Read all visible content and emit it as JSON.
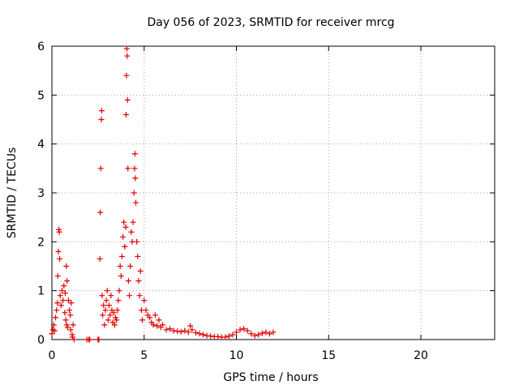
{
  "chart_data": {
    "type": "scatter",
    "title": "Day 056 of 2023, SRMTID for receiver mrcg",
    "xlabel": "GPS time / hours",
    "ylabel": "SRMTID / TECUs",
    "xlim": [
      0,
      24
    ],
    "ylim": [
      0,
      6
    ],
    "xticks": [
      0,
      5,
      10,
      15,
      20
    ],
    "yticks": [
      0,
      1,
      2,
      3,
      4,
      5,
      6
    ],
    "xtick_labels": [
      "0",
      "5",
      "10",
      "15",
      "20"
    ],
    "ytick_labels": [
      "0",
      "1",
      "2",
      "3",
      "4",
      "5",
      "6"
    ],
    "grid": true,
    "marker": "+",
    "series": [
      {
        "name": "SRMTID",
        "color": "#e00000",
        "points": [
          [
            0.0,
            0.12
          ],
          [
            0.05,
            0.2
          ],
          [
            0.1,
            0.3
          ],
          [
            0.15,
            0.18
          ],
          [
            0.2,
            0.45
          ],
          [
            0.25,
            0.6
          ],
          [
            0.3,
            0.75
          ],
          [
            0.32,
            1.3
          ],
          [
            0.35,
            1.8
          ],
          [
            0.38,
            2.25
          ],
          [
            0.4,
            2.2
          ],
          [
            0.42,
            1.65
          ],
          [
            0.45,
            0.9
          ],
          [
            0.5,
            0.7
          ],
          [
            0.55,
            1.0
          ],
          [
            0.6,
            0.8
          ],
          [
            0.65,
            1.1
          ],
          [
            0.7,
            0.55
          ],
          [
            0.72,
            0.95
          ],
          [
            0.75,
            0.4
          ],
          [
            0.78,
            1.5
          ],
          [
            0.8,
            0.3
          ],
          [
            0.82,
            1.2
          ],
          [
            0.85,
            0.25
          ],
          [
            0.9,
            0.8
          ],
          [
            0.95,
            0.6
          ],
          [
            1.0,
            0.5
          ],
          [
            1.02,
            0.2
          ],
          [
            1.05,
            0.75
          ],
          [
            1.1,
            0.1
          ],
          [
            1.12,
            0.05
          ],
          [
            1.15,
            0.3
          ],
          [
            1.2,
            0.0
          ],
          [
            1.9,
            0.0
          ],
          [
            2.0,
            0.0
          ],
          [
            2.05,
            0.0
          ],
          [
            2.5,
            0.0
          ],
          [
            2.55,
            0.0
          ],
          [
            2.6,
            1.65
          ],
          [
            2.62,
            2.6
          ],
          [
            2.65,
            3.5
          ],
          [
            2.68,
            4.5
          ],
          [
            2.7,
            4.68
          ],
          [
            2.72,
            0.9
          ],
          [
            2.75,
            0.5
          ],
          [
            2.8,
            0.7
          ],
          [
            2.85,
            0.3
          ],
          [
            2.9,
            0.6
          ],
          [
            2.95,
            0.8
          ],
          [
            3.0,
            1.0
          ],
          [
            3.05,
            0.4
          ],
          [
            3.1,
            0.7
          ],
          [
            3.15,
            0.5
          ],
          [
            3.2,
            0.9
          ],
          [
            3.25,
            0.6
          ],
          [
            3.3,
            0.35
          ],
          [
            3.35,
            0.55
          ],
          [
            3.4,
            0.3
          ],
          [
            3.45,
            0.45
          ],
          [
            3.5,
            0.4
          ],
          [
            3.55,
            0.6
          ],
          [
            3.6,
            0.8
          ],
          [
            3.65,
            1.0
          ],
          [
            3.7,
            1.5
          ],
          [
            3.75,
            1.3
          ],
          [
            3.8,
            1.7
          ],
          [
            3.85,
            2.1
          ],
          [
            3.9,
            2.4
          ],
          [
            3.95,
            1.9
          ],
          [
            4.0,
            2.3
          ],
          [
            4.02,
            4.6
          ],
          [
            4.04,
            5.4
          ],
          [
            4.06,
            5.95
          ],
          [
            4.08,
            5.8
          ],
          [
            4.1,
            4.9
          ],
          [
            4.12,
            3.5
          ],
          [
            4.15,
            1.2
          ],
          [
            4.2,
            0.9
          ],
          [
            4.25,
            1.5
          ],
          [
            4.3,
            2.2
          ],
          [
            4.35,
            2.0
          ],
          [
            4.4,
            2.4
          ],
          [
            4.45,
            3.0
          ],
          [
            4.48,
            3.5
          ],
          [
            4.5,
            3.8
          ],
          [
            4.52,
            3.3
          ],
          [
            4.55,
            2.8
          ],
          [
            4.6,
            2.0
          ],
          [
            4.65,
            1.7
          ],
          [
            4.7,
            1.2
          ],
          [
            4.75,
            0.9
          ],
          [
            4.8,
            1.4
          ],
          [
            4.85,
            0.6
          ],
          [
            4.9,
            0.4
          ],
          [
            5.0,
            0.8
          ],
          [
            5.1,
            0.6
          ],
          [
            5.2,
            0.5
          ],
          [
            5.3,
            0.45
          ],
          [
            5.4,
            0.35
          ],
          [
            5.5,
            0.3
          ],
          [
            5.6,
            0.5
          ],
          [
            5.7,
            0.28
          ],
          [
            5.8,
            0.4
          ],
          [
            5.9,
            0.25
          ],
          [
            6.0,
            0.3
          ],
          [
            6.2,
            0.2
          ],
          [
            6.4,
            0.22
          ],
          [
            6.6,
            0.18
          ],
          [
            6.8,
            0.17
          ],
          [
            7.0,
            0.16
          ],
          [
            7.2,
            0.18
          ],
          [
            7.4,
            0.15
          ],
          [
            7.5,
            0.28
          ],
          [
            7.6,
            0.2
          ],
          [
            7.8,
            0.14
          ],
          [
            8.0,
            0.12
          ],
          [
            8.2,
            0.1
          ],
          [
            8.4,
            0.08
          ],
          [
            8.6,
            0.07
          ],
          [
            8.8,
            0.06
          ],
          [
            9.0,
            0.06
          ],
          [
            9.2,
            0.05
          ],
          [
            9.4,
            0.05
          ],
          [
            9.6,
            0.07
          ],
          [
            9.8,
            0.1
          ],
          [
            10.0,
            0.15
          ],
          [
            10.2,
            0.2
          ],
          [
            10.4,
            0.22
          ],
          [
            10.6,
            0.18
          ],
          [
            10.8,
            0.12
          ],
          [
            11.0,
            0.08
          ],
          [
            11.2,
            0.1
          ],
          [
            11.4,
            0.13
          ],
          [
            11.6,
            0.15
          ],
          [
            11.8,
            0.12
          ],
          [
            12.0,
            0.15
          ]
        ]
      }
    ]
  }
}
